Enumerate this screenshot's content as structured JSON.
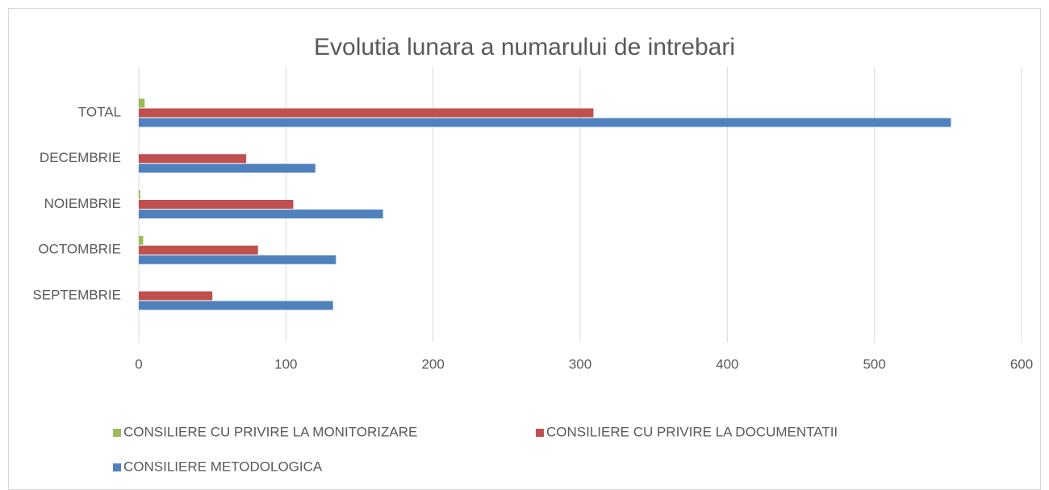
{
  "chart_data": {
    "type": "hbar",
    "title": "Evolutia lunara a numarului de intrebari",
    "categories": [
      "SEPTEMBRIE",
      "OCTOMBRIE",
      "NOIEMBRIE",
      "DECEMBRIE",
      "TOTAL"
    ],
    "series": [
      {
        "name": "CONSILIERE CU PRIVIRE LA MONITORIZARE",
        "color": "#9bbb59",
        "values": [
          0,
          3,
          1,
          0,
          4
        ]
      },
      {
        "name": "CONSILIERE CU PRIVIRE LA DOCUMENTATII",
        "color": "#c0504d",
        "values": [
          50,
          81,
          105,
          73,
          309
        ]
      },
      {
        "name": "CONSILIERE METODOLOGICA",
        "color": "#4f81bd",
        "values": [
          132,
          134,
          166,
          120,
          552
        ]
      }
    ],
    "xlim": [
      0,
      600
    ],
    "xticks": [
      0,
      100,
      200,
      300,
      400,
      500,
      600
    ],
    "grid": true,
    "legend": "bottom"
  }
}
